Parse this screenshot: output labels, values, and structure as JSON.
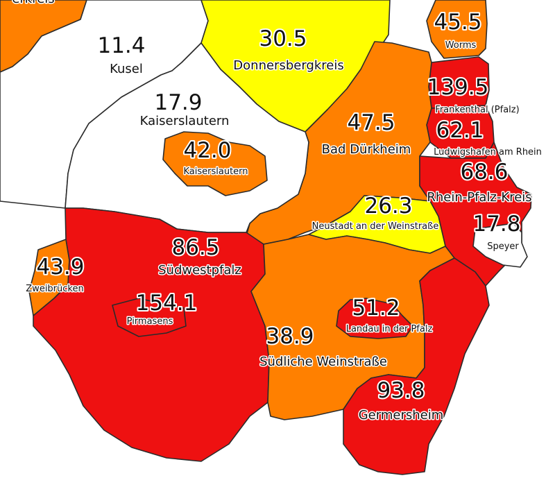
{
  "colors": {
    "white": "#ffffff",
    "yellow": "#ffff00",
    "orange": "#ff8000",
    "red": "#ee1111",
    "border": "#2b2b2b"
  },
  "top_left_fragment": "erkreis",
  "regions": [
    {
      "id": "kusel",
      "name": "Kusel",
      "value": "11.4",
      "fill": "white"
    },
    {
      "id": "donnersbergkreis",
      "name": "Donnersbergkreis",
      "value": "30.5",
      "fill": "yellow"
    },
    {
      "id": "worms",
      "name": "Worms",
      "value": "45.5",
      "fill": "orange"
    },
    {
      "id": "kaiserslautern-kreis",
      "name": "Kaiserslautern",
      "value": "17.9",
      "fill": "white"
    },
    {
      "id": "kaiserslautern-stadt",
      "name": "Kaiserslautern",
      "value": "42.0",
      "fill": "orange"
    },
    {
      "id": "frankenthal",
      "name": "Frankenthal (Pfalz)",
      "value": "139.5",
      "fill": "red"
    },
    {
      "id": "ludwigshafen",
      "name": "Ludwigshafen am Rhein",
      "value": "62.1",
      "fill": "red"
    },
    {
      "id": "bad-duerkheim",
      "name": "Bad Dürkheim",
      "value": "47.5",
      "fill": "orange"
    },
    {
      "id": "rhein-pfalz-kreis",
      "name": "Rhein-Pfalz-Kreis",
      "value": "68.6",
      "fill": "red"
    },
    {
      "id": "neustadt",
      "name": "Neustadt an der Weinstraße",
      "value": "26.3",
      "fill": "yellow"
    },
    {
      "id": "speyer",
      "name": "Speyer",
      "value": "17.8",
      "fill": "white"
    },
    {
      "id": "suedwestpfalz",
      "name": "Südwestpfalz",
      "value": "86.5",
      "fill": "red"
    },
    {
      "id": "zweibruecken",
      "name": "Zweibrücken",
      "value": "43.9",
      "fill": "orange"
    },
    {
      "id": "pirmasens",
      "name": "Pirmasens",
      "value": "154.1",
      "fill": "red"
    },
    {
      "id": "landau",
      "name": "Landau in der Pfalz",
      "value": "51.2",
      "fill": "red"
    },
    {
      "id": "suedliche-weinstrasse",
      "name": "Südliche Weinstraße",
      "value": "38.9",
      "fill": "orange"
    },
    {
      "id": "germersheim",
      "name": "Germersheim",
      "value": "93.8",
      "fill": "red"
    }
  ]
}
